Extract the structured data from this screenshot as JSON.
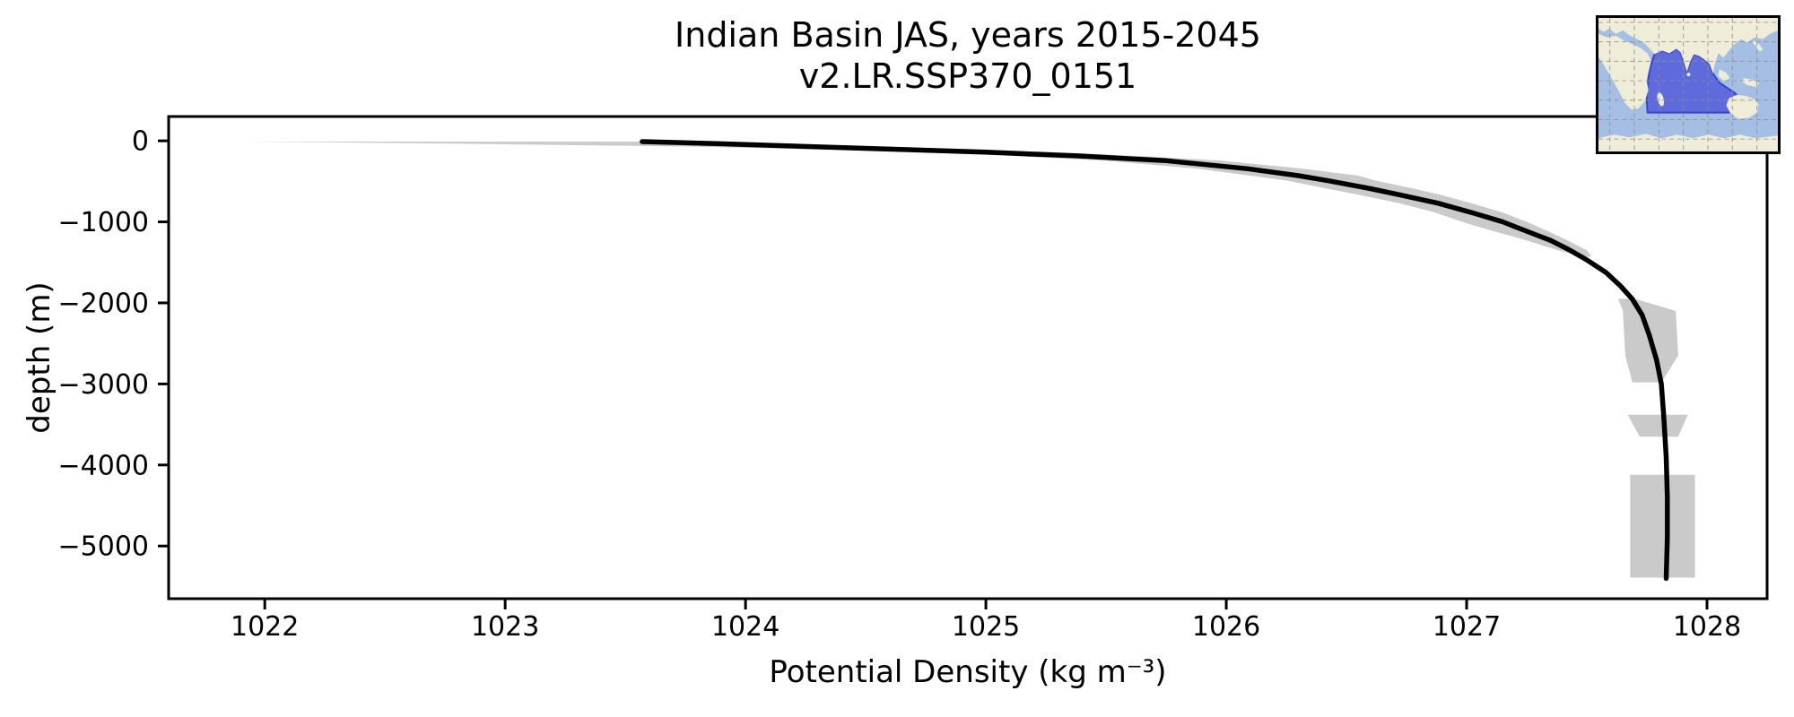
{
  "figure": {
    "title_line1": "Indian Basin JAS, years 2015-2045",
    "title_line2": "v2.LR.SSP370_0151"
  },
  "colors": {
    "background": "#ffffff",
    "profile_line": "#000000",
    "uncertainty_band": "#cacaca",
    "axis": "#000000",
    "tick_label": "#000000",
    "map_ocean": "#a4bfe3",
    "map_land": "#efecd8",
    "map_basin_fill": "#5560db",
    "map_basin_border": "#3743cd",
    "map_grid": "#8e8e8e"
  },
  "inset_map": {
    "highlight_region": "Indian Ocean basin"
  },
  "chart_data": {
    "type": "line",
    "title": "Indian Basin JAS, years 2015-2045\nv2.LR.SSP370_0151",
    "xlabel": "Potential Density (kg m⁻³)",
    "ylabel": "depth (m)",
    "xlim": [
      1021.6,
      1028.25
    ],
    "ylim": [
      300,
      -5650
    ],
    "grid": false,
    "legend": "none",
    "xticks": [
      1022,
      1023,
      1024,
      1025,
      1026,
      1027,
      1028
    ],
    "xtick_labels": [
      "1022",
      "1023",
      "1024",
      "1025",
      "1026",
      "1027",
      "1028"
    ],
    "yticks": [
      0,
      -1000,
      -2000,
      -3000,
      -4000,
      -5000
    ],
    "ytick_labels": [
      "0",
      "−1000",
      "−2000",
      "−3000",
      "−4000",
      "−5000"
    ],
    "series": [
      {
        "name": "ensemble mean potential density profile",
        "x": [
          1023.57,
          1023.88,
          1024.26,
          1024.63,
          1025.0,
          1025.38,
          1025.75,
          1026.09,
          1026.3,
          1026.42,
          1026.6,
          1026.72,
          1026.88,
          1027.02,
          1027.15,
          1027.24,
          1027.35,
          1027.43,
          1027.5,
          1027.58,
          1027.64,
          1027.69,
          1027.73,
          1027.76,
          1027.79,
          1027.81,
          1027.82,
          1027.83,
          1027.835,
          1027.835,
          1027.83
        ],
        "y": [
          -10,
          -35,
          -70,
          -105,
          -140,
          -185,
          -245,
          -345,
          -430,
          -490,
          -590,
          -665,
          -770,
          -885,
          -1000,
          -1105,
          -1230,
          -1350,
          -1470,
          -1625,
          -1790,
          -1955,
          -2150,
          -2400,
          -2700,
          -3000,
          -3400,
          -3900,
          -4400,
          -4900,
          -5400
        ]
      }
    ],
    "band_segments": [
      [
        [
          -10,
          1021.93,
          1023.68
        ],
        [
          -35,
          1022.8,
          1024.05
        ],
        [
          -70,
          1023.75,
          1024.55
        ],
        [
          -105,
          1024.3,
          1024.95
        ],
        [
          -140,
          1024.72,
          1025.28
        ],
        [
          -185,
          1025.1,
          1025.62
        ],
        [
          -245,
          1025.5,
          1025.98
        ],
        [
          -345,
          1025.88,
          1026.32
        ],
        [
          -430,
          1026.1,
          1026.55
        ],
        [
          -490,
          1026.25,
          1026.62
        ],
        [
          -590,
          1026.42,
          1026.78
        ],
        [
          -665,
          1026.55,
          1026.89
        ],
        [
          -770,
          1026.72,
          1027.02
        ],
        [
          -885,
          1026.87,
          1027.15
        ],
        [
          -1000,
          1026.98,
          1027.25
        ],
        [
          -1105,
          1027.1,
          1027.33
        ],
        [
          -1230,
          1027.25,
          1027.42
        ],
        [
          -1350,
          1027.38,
          1027.5
        ],
        [
          -1430,
          1027.48,
          1027.52
        ]
      ],
      [
        [
          -1950,
          1027.63,
          1027.7
        ],
        [
          -2100,
          1027.65,
          1027.87
        ],
        [
          -2650,
          1027.66,
          1027.88
        ],
        [
          -2980,
          1027.69,
          1027.81
        ]
      ],
      [
        [
          -3380,
          1027.67,
          1027.92
        ],
        [
          -3650,
          1027.72,
          1027.88
        ]
      ],
      [
        [
          -4120,
          1027.68,
          1027.95
        ],
        [
          -5390,
          1027.68,
          1027.95
        ]
      ]
    ]
  }
}
